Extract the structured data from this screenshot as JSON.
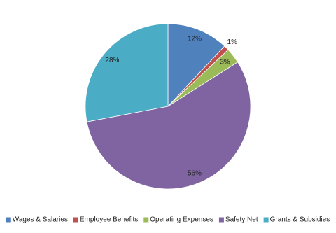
{
  "chart_data": {
    "type": "pie",
    "categories": [
      "Wages & Salaries",
      "Employee Benefits",
      "Operating Expenses",
      "Safety Net",
      "Grants & Subsidies"
    ],
    "values": [
      12,
      1,
      3,
      56,
      28
    ],
    "value_labels": [
      "12%",
      "1%",
      "3%",
      "56%",
      "28%"
    ],
    "colors": [
      "#4f81bd",
      "#c0504d",
      "#9bbb59",
      "#8064a2",
      "#4bacc6"
    ],
    "legend": "bottom"
  }
}
